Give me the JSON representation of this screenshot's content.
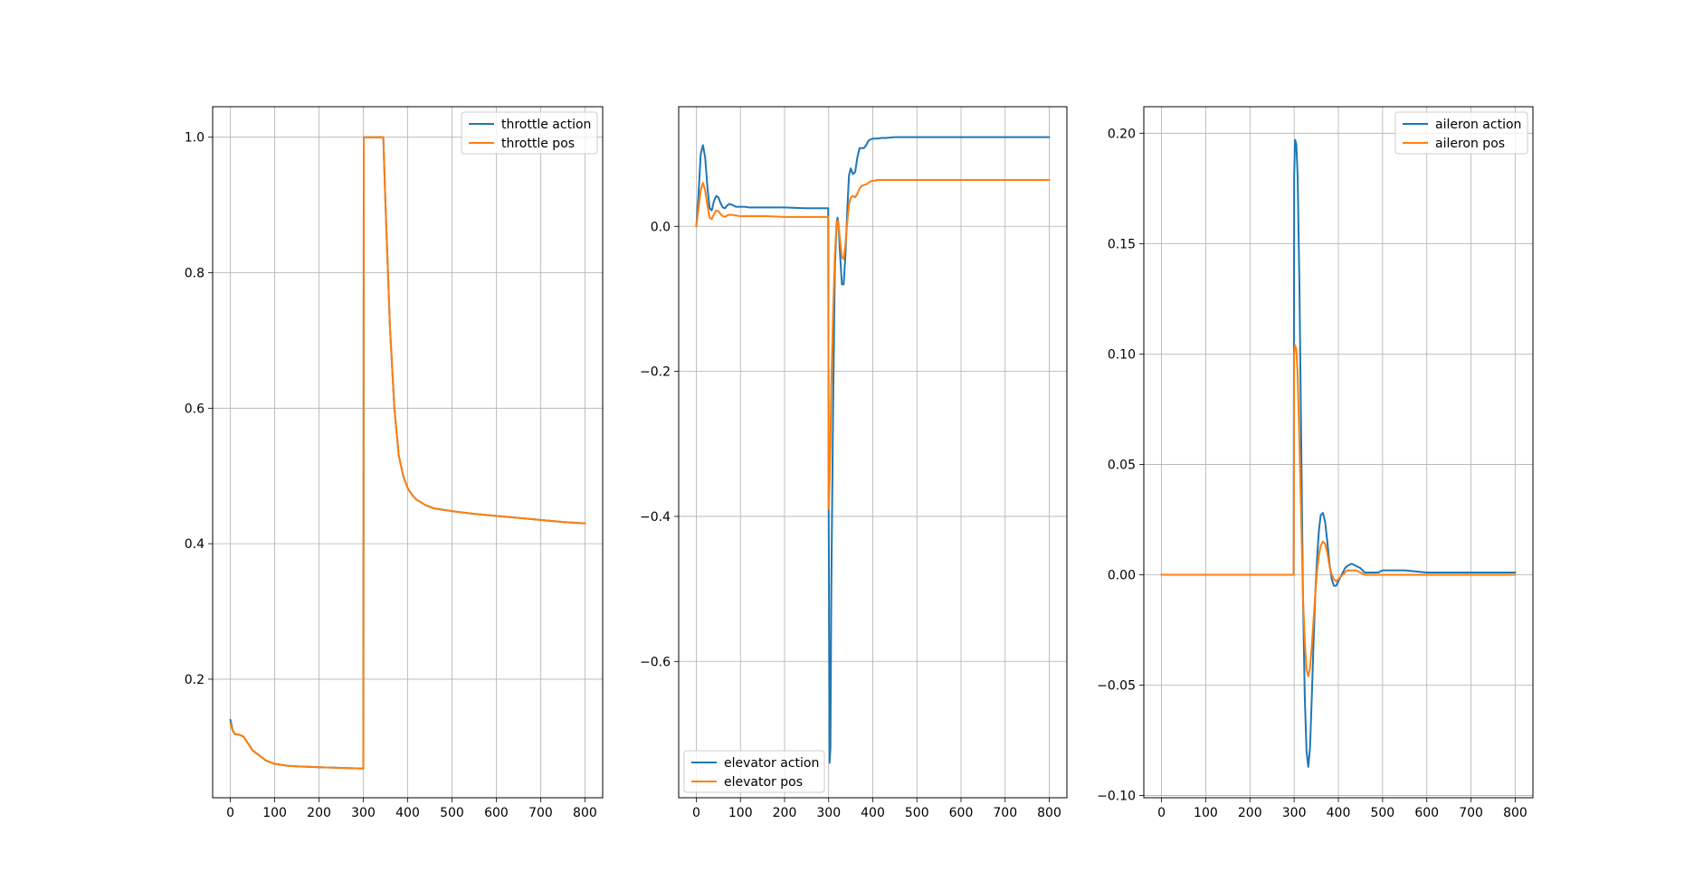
{
  "chart_data": [
    {
      "type": "line",
      "xlim": [
        -40,
        840
      ],
      "ylim": [
        0.025,
        1.045
      ],
      "xticks": [
        0,
        100,
        200,
        300,
        400,
        500,
        600,
        700,
        800
      ],
      "xtick_labels": [
        "0",
        "100",
        "200",
        "300",
        "400",
        "500",
        "600",
        "700",
        "800"
      ],
      "yticks": [
        0.2,
        0.4,
        0.6,
        0.8,
        1.0
      ],
      "ytick_labels": [
        "0.2",
        "0.4",
        "0.6",
        "0.8",
        "1.0"
      ],
      "grid": true,
      "legend_position": "upper right",
      "series": [
        {
          "name": "throttle action",
          "color": "#1f77b4",
          "x": [
            0,
            5,
            10,
            20,
            30,
            40,
            50,
            60,
            80,
            100,
            130,
            160,
            200,
            250,
            299,
            300,
            301,
            320,
            340,
            345,
            350,
            360,
            370,
            380,
            390,
            400,
            410,
            420,
            440,
            460,
            500,
            550,
            600,
            650,
            700,
            750,
            800
          ],
          "y": [
            0.14,
            0.125,
            0.119,
            0.118,
            0.115,
            0.105,
            0.095,
            0.09,
            0.08,
            0.075,
            0.072,
            0.071,
            0.07,
            0.069,
            0.068,
            0.068,
            1.0,
            1.0,
            1.0,
            1.0,
            0.9,
            0.72,
            0.6,
            0.53,
            0.5,
            0.482,
            0.472,
            0.465,
            0.457,
            0.452,
            0.448,
            0.444,
            0.441,
            0.438,
            0.435,
            0.432,
            0.43
          ]
        },
        {
          "name": "throttle pos",
          "color": "#ff7f0e",
          "x": [
            0,
            5,
            10,
            20,
            30,
            40,
            50,
            60,
            80,
            100,
            130,
            160,
            200,
            250,
            299,
            300,
            301,
            320,
            340,
            345,
            350,
            360,
            370,
            380,
            390,
            400,
            410,
            420,
            440,
            460,
            500,
            550,
            600,
            650,
            700,
            750,
            800
          ],
          "y": [
            0.135,
            0.124,
            0.119,
            0.118,
            0.115,
            0.105,
            0.095,
            0.09,
            0.08,
            0.075,
            0.072,
            0.071,
            0.07,
            0.069,
            0.068,
            0.068,
            1.0,
            1.0,
            1.0,
            1.0,
            0.9,
            0.72,
            0.6,
            0.53,
            0.5,
            0.482,
            0.472,
            0.465,
            0.457,
            0.452,
            0.448,
            0.444,
            0.441,
            0.438,
            0.435,
            0.432,
            0.43
          ]
        }
      ]
    },
    {
      "type": "line",
      "xlim": [
        -40,
        840
      ],
      "ylim": [
        -0.788,
        0.165
      ],
      "xticks": [
        0,
        100,
        200,
        300,
        400,
        500,
        600,
        700,
        800
      ],
      "xtick_labels": [
        "0",
        "100",
        "200",
        "300",
        "400",
        "500",
        "600",
        "700",
        "800"
      ],
      "yticks": [
        -0.6,
        -0.4,
        -0.2,
        0.0
      ],
      "ytick_labels": [
        "−0.6",
        "−0.4",
        "−0.2",
        "0.0"
      ],
      "grid": true,
      "legend_position": "lower left",
      "series": [
        {
          "name": "elevator action",
          "color": "#1f77b4",
          "x": [
            0,
            5,
            10,
            15,
            20,
            25,
            30,
            35,
            40,
            45,
            50,
            55,
            60,
            65,
            70,
            75,
            80,
            90,
            100,
            110,
            120,
            140,
            160,
            200,
            250,
            299,
            300,
            302,
            304,
            306,
            310,
            314,
            318,
            320,
            322,
            326,
            330,
            334,
            338,
            342,
            346,
            350,
            355,
            360,
            365,
            370,
            375,
            380,
            385,
            390,
            395,
            400,
            405,
            410,
            420,
            430,
            450,
            500,
            600,
            700,
            800
          ],
          "y": [
            0.0,
            0.045,
            0.1,
            0.112,
            0.095,
            0.055,
            0.025,
            0.022,
            0.035,
            0.042,
            0.04,
            0.032,
            0.026,
            0.025,
            0.029,
            0.031,
            0.03,
            0.027,
            0.027,
            0.027,
            0.026,
            0.026,
            0.026,
            0.026,
            0.025,
            0.025,
            -0.39,
            -0.74,
            -0.72,
            -0.5,
            -0.25,
            -0.06,
            0.005,
            0.012,
            0.005,
            -0.04,
            -0.08,
            -0.08,
            -0.04,
            0.02,
            0.07,
            0.08,
            0.072,
            0.075,
            0.095,
            0.108,
            0.108,
            0.108,
            0.112,
            0.118,
            0.12,
            0.121,
            0.121,
            0.121,
            0.122,
            0.122,
            0.123,
            0.123,
            0.123,
            0.123,
            0.123
          ]
        },
        {
          "name": "elevator pos",
          "color": "#ff7f0e",
          "x": [
            0,
            5,
            10,
            15,
            20,
            25,
            30,
            35,
            40,
            45,
            50,
            55,
            60,
            65,
            70,
            75,
            80,
            90,
            100,
            110,
            120,
            140,
            160,
            200,
            250,
            299,
            300,
            302,
            304,
            306,
            310,
            314,
            318,
            320,
            322,
            326,
            330,
            334,
            338,
            342,
            346,
            350,
            355,
            360,
            365,
            370,
            375,
            380,
            385,
            390,
            395,
            400,
            405,
            410,
            420,
            430,
            450,
            500,
            600,
            700,
            800
          ],
          "y": [
            0.0,
            0.025,
            0.05,
            0.06,
            0.05,
            0.03,
            0.012,
            0.01,
            0.017,
            0.022,
            0.021,
            0.017,
            0.014,
            0.013,
            0.015,
            0.016,
            0.016,
            0.015,
            0.014,
            0.014,
            0.014,
            0.014,
            0.014,
            0.013,
            0.013,
            0.013,
            -0.39,
            -0.35,
            -0.3,
            -0.22,
            -0.12,
            -0.04,
            0.005,
            0.008,
            0.004,
            -0.02,
            -0.043,
            -0.045,
            -0.025,
            0.005,
            0.03,
            0.04,
            0.042,
            0.04,
            0.045,
            0.052,
            0.056,
            0.057,
            0.058,
            0.06,
            0.062,
            0.063,
            0.063,
            0.064,
            0.064,
            0.064,
            0.064,
            0.064,
            0.064,
            0.064,
            0.064
          ]
        }
      ]
    },
    {
      "type": "line",
      "xlim": [
        -40,
        840
      ],
      "ylim": [
        -0.101,
        0.212
      ],
      "xticks": [
        0,
        100,
        200,
        300,
        400,
        500,
        600,
        700,
        800
      ],
      "xtick_labels": [
        "0",
        "100",
        "200",
        "300",
        "400",
        "500",
        "600",
        "700",
        "800"
      ],
      "yticks": [
        -0.1,
        -0.05,
        0.0,
        0.05,
        0.1,
        0.15,
        0.2
      ],
      "ytick_labels": [
        "−0.10",
        "−0.05",
        "0.00",
        "0.05",
        "0.10",
        "0.15",
        "0.20"
      ],
      "grid": true,
      "legend_position": "upper right",
      "series": [
        {
          "name": "aileron action",
          "color": "#1f77b4",
          "x": [
            0,
            100,
            200,
            299,
            300,
            302,
            305,
            308,
            312,
            316,
            320,
            324,
            328,
            332,
            336,
            340,
            344,
            348,
            352,
            356,
            360,
            365,
            370,
            375,
            380,
            385,
            390,
            395,
            400,
            405,
            410,
            415,
            420,
            430,
            440,
            450,
            460,
            470,
            480,
            490,
            500,
            520,
            550,
            600,
            700,
            800
          ],
          "y": [
            0,
            0,
            0,
            0,
            0.18,
            0.197,
            0.195,
            0.18,
            0.13,
            0.06,
            -0.01,
            -0.055,
            -0.08,
            -0.087,
            -0.078,
            -0.055,
            -0.03,
            -0.008,
            0.008,
            0.02,
            0.027,
            0.028,
            0.024,
            0.015,
            0.005,
            -0.002,
            -0.005,
            -0.005,
            -0.003,
            -0.001,
            0.001,
            0.003,
            0.004,
            0.005,
            0.004,
            0.003,
            0.001,
            0.001,
            0.001,
            0.001,
            0.002,
            0.002,
            0.002,
            0.001,
            0.001,
            0.001
          ]
        },
        {
          "name": "aileron pos",
          "color": "#ff7f0e",
          "x": [
            0,
            100,
            200,
            299,
            300,
            302,
            305,
            308,
            312,
            316,
            320,
            324,
            328,
            332,
            336,
            340,
            344,
            348,
            352,
            356,
            360,
            365,
            370,
            375,
            380,
            385,
            390,
            395,
            400,
            405,
            410,
            415,
            420,
            430,
            440,
            450,
            460,
            470,
            480,
            490,
            500,
            520,
            550,
            600,
            700,
            800
          ],
          "y": [
            0,
            0,
            0,
            0,
            0.1,
            0.104,
            0.102,
            0.09,
            0.06,
            0.025,
            -0.01,
            -0.03,
            -0.043,
            -0.046,
            -0.042,
            -0.032,
            -0.02,
            -0.008,
            0.002,
            0.009,
            0.013,
            0.015,
            0.014,
            0.01,
            0.004,
            0.0,
            -0.002,
            -0.003,
            -0.002,
            -0.001,
            0.0,
            0.001,
            0.002,
            0.002,
            0.002,
            0.001,
            0.0,
            0.0,
            0.0,
            0.0,
            0.0,
            0.0,
            0.0,
            0.0,
            0.0,
            0.0
          ]
        }
      ]
    }
  ]
}
